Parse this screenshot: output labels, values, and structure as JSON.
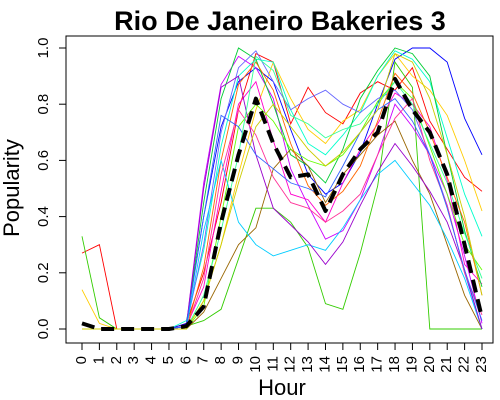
{
  "chart_data": {
    "type": "line",
    "title": "Rio De Janeiro Bakeries 3",
    "xlabel": "Hour",
    "ylabel": "Popularity",
    "xlim": [
      0,
      23
    ],
    "ylim": [
      0.0,
      1.0
    ],
    "x": [
      0,
      1,
      2,
      3,
      4,
      5,
      6,
      7,
      8,
      9,
      10,
      11,
      12,
      13,
      14,
      15,
      16,
      17,
      18,
      19,
      20,
      21,
      22,
      23
    ],
    "x_ticks": [
      "0",
      "1",
      "2",
      "3",
      "4",
      "5",
      "6",
      "7",
      "8",
      "9",
      "10",
      "11",
      "12",
      "13",
      "14",
      "15",
      "16",
      "17",
      "18",
      "19",
      "20",
      "21",
      "22",
      "23"
    ],
    "y_ticks": [
      "0.0",
      "0.2",
      "0.4",
      "0.6",
      "0.8",
      "1.0"
    ],
    "y_tick_values": [
      0.0,
      0.2,
      0.4,
      0.6,
      0.8,
      1.0
    ],
    "grid": false,
    "legend": false,
    "average_series": {
      "color": "#000000",
      "style": "dashed",
      "values": [
        0.02,
        0.0,
        0.0,
        0.0,
        0.0,
        0.0,
        0.01,
        0.08,
        0.38,
        0.62,
        0.82,
        0.66,
        0.54,
        0.55,
        0.42,
        0.55,
        0.64,
        0.7,
        0.89,
        0.78,
        0.7,
        0.55,
        0.3,
        0.04
      ]
    },
    "series": [
      {
        "color": "#ff0000",
        "values": [
          0.27,
          0.3,
          0.0,
          0.0,
          0.0,
          0.0,
          0.02,
          0.2,
          0.45,
          0.78,
          0.98,
          0.95,
          0.73,
          0.86,
          0.77,
          0.73,
          0.84,
          0.88,
          0.85,
          0.93,
          0.74,
          0.64,
          0.54,
          0.49
        ]
      },
      {
        "color": "#33cc00",
        "values": [
          0.33,
          0.04,
          0.0,
          0.0,
          0.0,
          0.0,
          0.01,
          0.03,
          0.07,
          0.25,
          0.43,
          0.43,
          0.38,
          0.29,
          0.09,
          0.07,
          0.27,
          0.51,
          0.95,
          0.86,
          0.0,
          0.0,
          0.0,
          0.0
        ]
      },
      {
        "color": "#ffcc00",
        "values": [
          0.14,
          0.02,
          0.0,
          0.0,
          0.0,
          0.0,
          0.0,
          0.1,
          0.3,
          0.55,
          0.78,
          0.95,
          0.82,
          0.71,
          0.66,
          0.74,
          0.78,
          0.9,
          0.98,
          0.9,
          0.85,
          0.76,
          0.6,
          0.42
        ]
      },
      {
        "color": "#0000ff",
        "values": [
          0.0,
          0.0,
          0.0,
          0.0,
          0.0,
          0.0,
          0.02,
          0.4,
          0.72,
          0.88,
          0.93,
          0.88,
          0.71,
          0.55,
          0.48,
          0.52,
          0.63,
          0.8,
          0.96,
          1.0,
          1.0,
          0.95,
          0.75,
          0.62
        ]
      },
      {
        "color": "#00ffcc",
        "values": [
          0.0,
          0.0,
          0.0,
          0.0,
          0.0,
          0.0,
          0.03,
          0.28,
          0.65,
          0.9,
          0.96,
          0.95,
          0.78,
          0.66,
          0.62,
          0.69,
          0.77,
          0.9,
          0.99,
          0.96,
          0.88,
          0.68,
          0.48,
          0.33
        ]
      },
      {
        "color": "#cc00ff",
        "values": [
          0.0,
          0.0,
          0.0,
          0.0,
          0.0,
          0.0,
          0.01,
          0.52,
          0.87,
          0.97,
          0.93,
          0.82,
          0.57,
          0.44,
          0.32,
          0.35,
          0.46,
          0.62,
          0.8,
          0.72,
          0.62,
          0.48,
          0.26,
          0.02
        ]
      },
      {
        "color": "#ff00cc",
        "values": [
          0.0,
          0.0,
          0.0,
          0.0,
          0.0,
          0.0,
          0.01,
          0.15,
          0.49,
          0.8,
          0.88,
          0.67,
          0.48,
          0.46,
          0.38,
          0.52,
          0.64,
          0.73,
          0.84,
          0.8,
          0.72,
          0.53,
          0.23,
          0.16
        ]
      },
      {
        "color": "#00cc33",
        "values": [
          0.0,
          0.0,
          0.0,
          0.0,
          0.0,
          0.0,
          0.01,
          0.45,
          0.82,
          1.0,
          0.96,
          0.8,
          0.62,
          0.58,
          0.52,
          0.64,
          0.82,
          0.92,
          1.0,
          0.98,
          0.9,
          0.62,
          0.35,
          0.15
        ]
      },
      {
        "color": "#996600",
        "values": [
          0.0,
          0.0,
          0.0,
          0.0,
          0.0,
          0.0,
          0.0,
          0.06,
          0.18,
          0.3,
          0.36,
          0.57,
          0.64,
          0.58,
          0.45,
          0.55,
          0.62,
          0.69,
          0.74,
          0.6,
          0.48,
          0.3,
          0.12,
          0.0
        ]
      },
      {
        "color": "#6666ff",
        "values": [
          0.0,
          0.0,
          0.0,
          0.0,
          0.0,
          0.0,
          0.01,
          0.3,
          0.7,
          0.93,
          0.99,
          0.88,
          0.78,
          0.82,
          0.85,
          0.8,
          0.77,
          0.82,
          0.85,
          0.78,
          0.62,
          0.44,
          0.2,
          0.0
        ]
      },
      {
        "color": "#66ff00",
        "values": [
          0.0,
          0.0,
          0.0,
          0.0,
          0.0,
          0.0,
          0.0,
          0.08,
          0.4,
          0.72,
          0.8,
          0.74,
          0.64,
          0.6,
          0.58,
          0.62,
          0.7,
          0.81,
          0.88,
          0.82,
          0.65,
          0.48,
          0.3,
          0.21
        ]
      },
      {
        "color": "#ff6600",
        "values": [
          0.0,
          0.0,
          0.0,
          0.0,
          0.0,
          0.0,
          0.0,
          0.22,
          0.6,
          0.87,
          0.95,
          0.85,
          0.66,
          0.51,
          0.44,
          0.49,
          0.58,
          0.74,
          0.91,
          0.84,
          0.7,
          0.54,
          0.38,
          0.12
        ]
      },
      {
        "color": "#00ccff",
        "values": [
          0.0,
          0.0,
          0.0,
          0.0,
          0.0,
          0.0,
          0.0,
          0.35,
          0.6,
          0.38,
          0.3,
          0.26,
          0.28,
          0.3,
          0.28,
          0.36,
          0.46,
          0.55,
          0.6,
          0.52,
          0.44,
          0.32,
          0.18,
          0.0
        ]
      },
      {
        "color": "#9900cc",
        "values": [
          0.0,
          0.0,
          0.0,
          0.0,
          0.0,
          0.0,
          0.01,
          0.5,
          0.86,
          0.9,
          0.62,
          0.43,
          0.37,
          0.31,
          0.23,
          0.31,
          0.44,
          0.56,
          0.66,
          0.58,
          0.49,
          0.38,
          0.21,
          0.0
        ]
      },
      {
        "color": "#ff3399",
        "values": [
          0.0,
          0.0,
          0.0,
          0.0,
          0.0,
          0.0,
          0.0,
          0.18,
          0.55,
          0.78,
          0.69,
          0.54,
          0.45,
          0.43,
          0.38,
          0.42,
          0.48,
          0.62,
          0.75,
          0.82,
          0.6,
          0.44,
          0.2,
          0.05
        ]
      },
      {
        "color": "#3366ff",
        "values": [
          0.0,
          0.0,
          0.0,
          0.0,
          0.0,
          0.0,
          0.01,
          0.4,
          0.76,
          0.72,
          0.62,
          0.57,
          0.52,
          0.5,
          0.47,
          0.58,
          0.7,
          0.78,
          0.82,
          0.74,
          0.62,
          0.43,
          0.21,
          0.03
        ]
      },
      {
        "color": "#33ff99",
        "values": [
          0.0,
          0.0,
          0.0,
          0.0,
          0.0,
          0.0,
          0.0,
          0.12,
          0.35,
          0.62,
          0.97,
          0.92,
          0.76,
          0.73,
          0.68,
          0.71,
          0.73,
          0.8,
          0.88,
          0.8,
          0.66,
          0.52,
          0.34,
          0.18
        ]
      },
      {
        "color": "#cccc00",
        "values": [
          0.0,
          0.0,
          0.0,
          0.0,
          0.0,
          0.0,
          0.0,
          0.1,
          0.3,
          0.52,
          0.72,
          0.8,
          0.72,
          0.64,
          0.58,
          0.63,
          0.7,
          0.78,
          0.98,
          0.95,
          0.82,
          0.62,
          0.4,
          0.12
        ]
      }
    ]
  }
}
